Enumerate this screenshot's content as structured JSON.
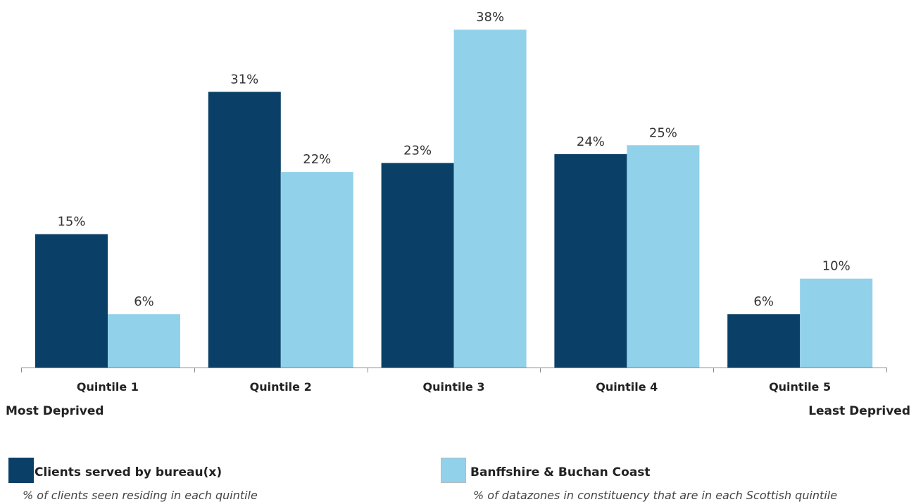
{
  "chart_data": {
    "type": "bar",
    "categories": [
      "Quintile 1",
      "Quintile 2",
      "Quintile 3",
      "Quintile 4",
      "Quintile 5"
    ],
    "series": [
      {
        "name": "Clients served by bureau(x)",
        "description": "% of clients seen residing in each quintile",
        "color": "#0a4067",
        "values": [
          15,
          31,
          23,
          24,
          6
        ],
        "labels": [
          "15%",
          "31%",
          "23%",
          "24%",
          "6%"
        ]
      },
      {
        "name": "Banffshire & Buchan Coast",
        "description": "% of datazones in constituency that are in each Scottish quintile",
        "color": "#92d1ea",
        "values": [
          6,
          22,
          38,
          25,
          10
        ],
        "labels": [
          "6%",
          "22%",
          "38%",
          "25%",
          "10%"
        ]
      }
    ],
    "ylim": [
      0,
      40
    ],
    "grid": false,
    "legend_position": "bottom",
    "axis_end_labels": {
      "left": "Most Deprived",
      "right": "Least Deprived"
    }
  }
}
